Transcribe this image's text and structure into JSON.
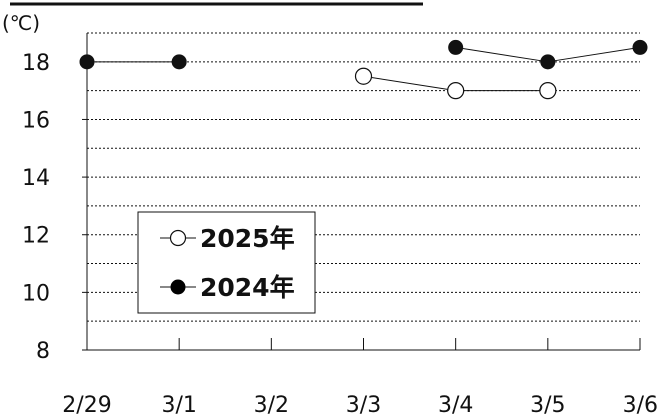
{
  "chart_data": {
    "type": "line",
    "unit_label": "(℃)",
    "categories": [
      "2/29",
      "3/1",
      "3/2",
      "3/3",
      "3/4",
      "3/5",
      "3/6"
    ],
    "ylim": [
      8,
      19
    ],
    "yticks": [
      8,
      10,
      12,
      14,
      16,
      18
    ],
    "grid": "dotted horizontal lines every 1",
    "legend_position": "lower-left",
    "series": [
      {
        "name": "2025年",
        "marker": "open-circle",
        "color": "#111111",
        "values": [
          null,
          null,
          null,
          17.5,
          17,
          17,
          null
        ]
      },
      {
        "name": "2024年",
        "marker": "filled-circle",
        "color": "#111111",
        "values": [
          18,
          18,
          null,
          null,
          18.5,
          18,
          18.5
        ]
      }
    ]
  }
}
